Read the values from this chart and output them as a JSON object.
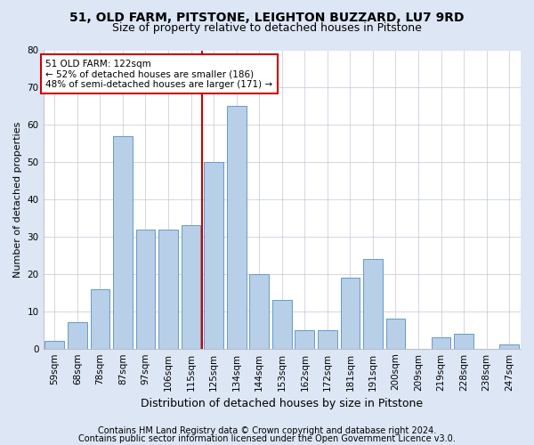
{
  "title1": "51, OLD FARM, PITSTONE, LEIGHTON BUZZARD, LU7 9RD",
  "title2": "Size of property relative to detached houses in Pitstone",
  "xlabel": "Distribution of detached houses by size in Pitstone",
  "ylabel": "Number of detached properties",
  "categories": [
    "59sqm",
    "68sqm",
    "78sqm",
    "87sqm",
    "97sqm",
    "106sqm",
    "115sqm",
    "125sqm",
    "134sqm",
    "144sqm",
    "153sqm",
    "162sqm",
    "172sqm",
    "181sqm",
    "191sqm",
    "200sqm",
    "209sqm",
    "219sqm",
    "228sqm",
    "238sqm",
    "247sqm"
  ],
  "values": [
    2,
    7,
    16,
    57,
    32,
    32,
    33,
    50,
    65,
    20,
    13,
    5,
    5,
    19,
    24,
    8,
    0,
    3,
    4,
    0,
    1
  ],
  "bar_color": "#b8cfe8",
  "bar_edge_color": "#6699cc",
  "vline_color": "#cc0000",
  "vline_x_index": 7,
  "annotation_line1": "51 OLD FARM: 122sqm",
  "annotation_line2": "← 52% of detached houses are smaller (186)",
  "annotation_line3": "48% of semi-detached houses are larger (171) →",
  "annotation_box_facecolor": "#ffffff",
  "annotation_box_edgecolor": "#cc0000",
  "ylim": [
    0,
    80
  ],
  "yticks": [
    0,
    10,
    20,
    30,
    40,
    50,
    60,
    70,
    80
  ],
  "footer1": "Contains HM Land Registry data © Crown copyright and database right 2024.",
  "footer2": "Contains public sector information licensed under the Open Government Licence v3.0.",
  "bg_color": "#dce6f5",
  "plot_bg_color": "#ffffff",
  "title1_fontsize": 10,
  "title2_fontsize": 9,
  "xlabel_fontsize": 9,
  "ylabel_fontsize": 8,
  "tick_fontsize": 7.5,
  "annot_fontsize": 7.5,
  "footer_fontsize": 7
}
